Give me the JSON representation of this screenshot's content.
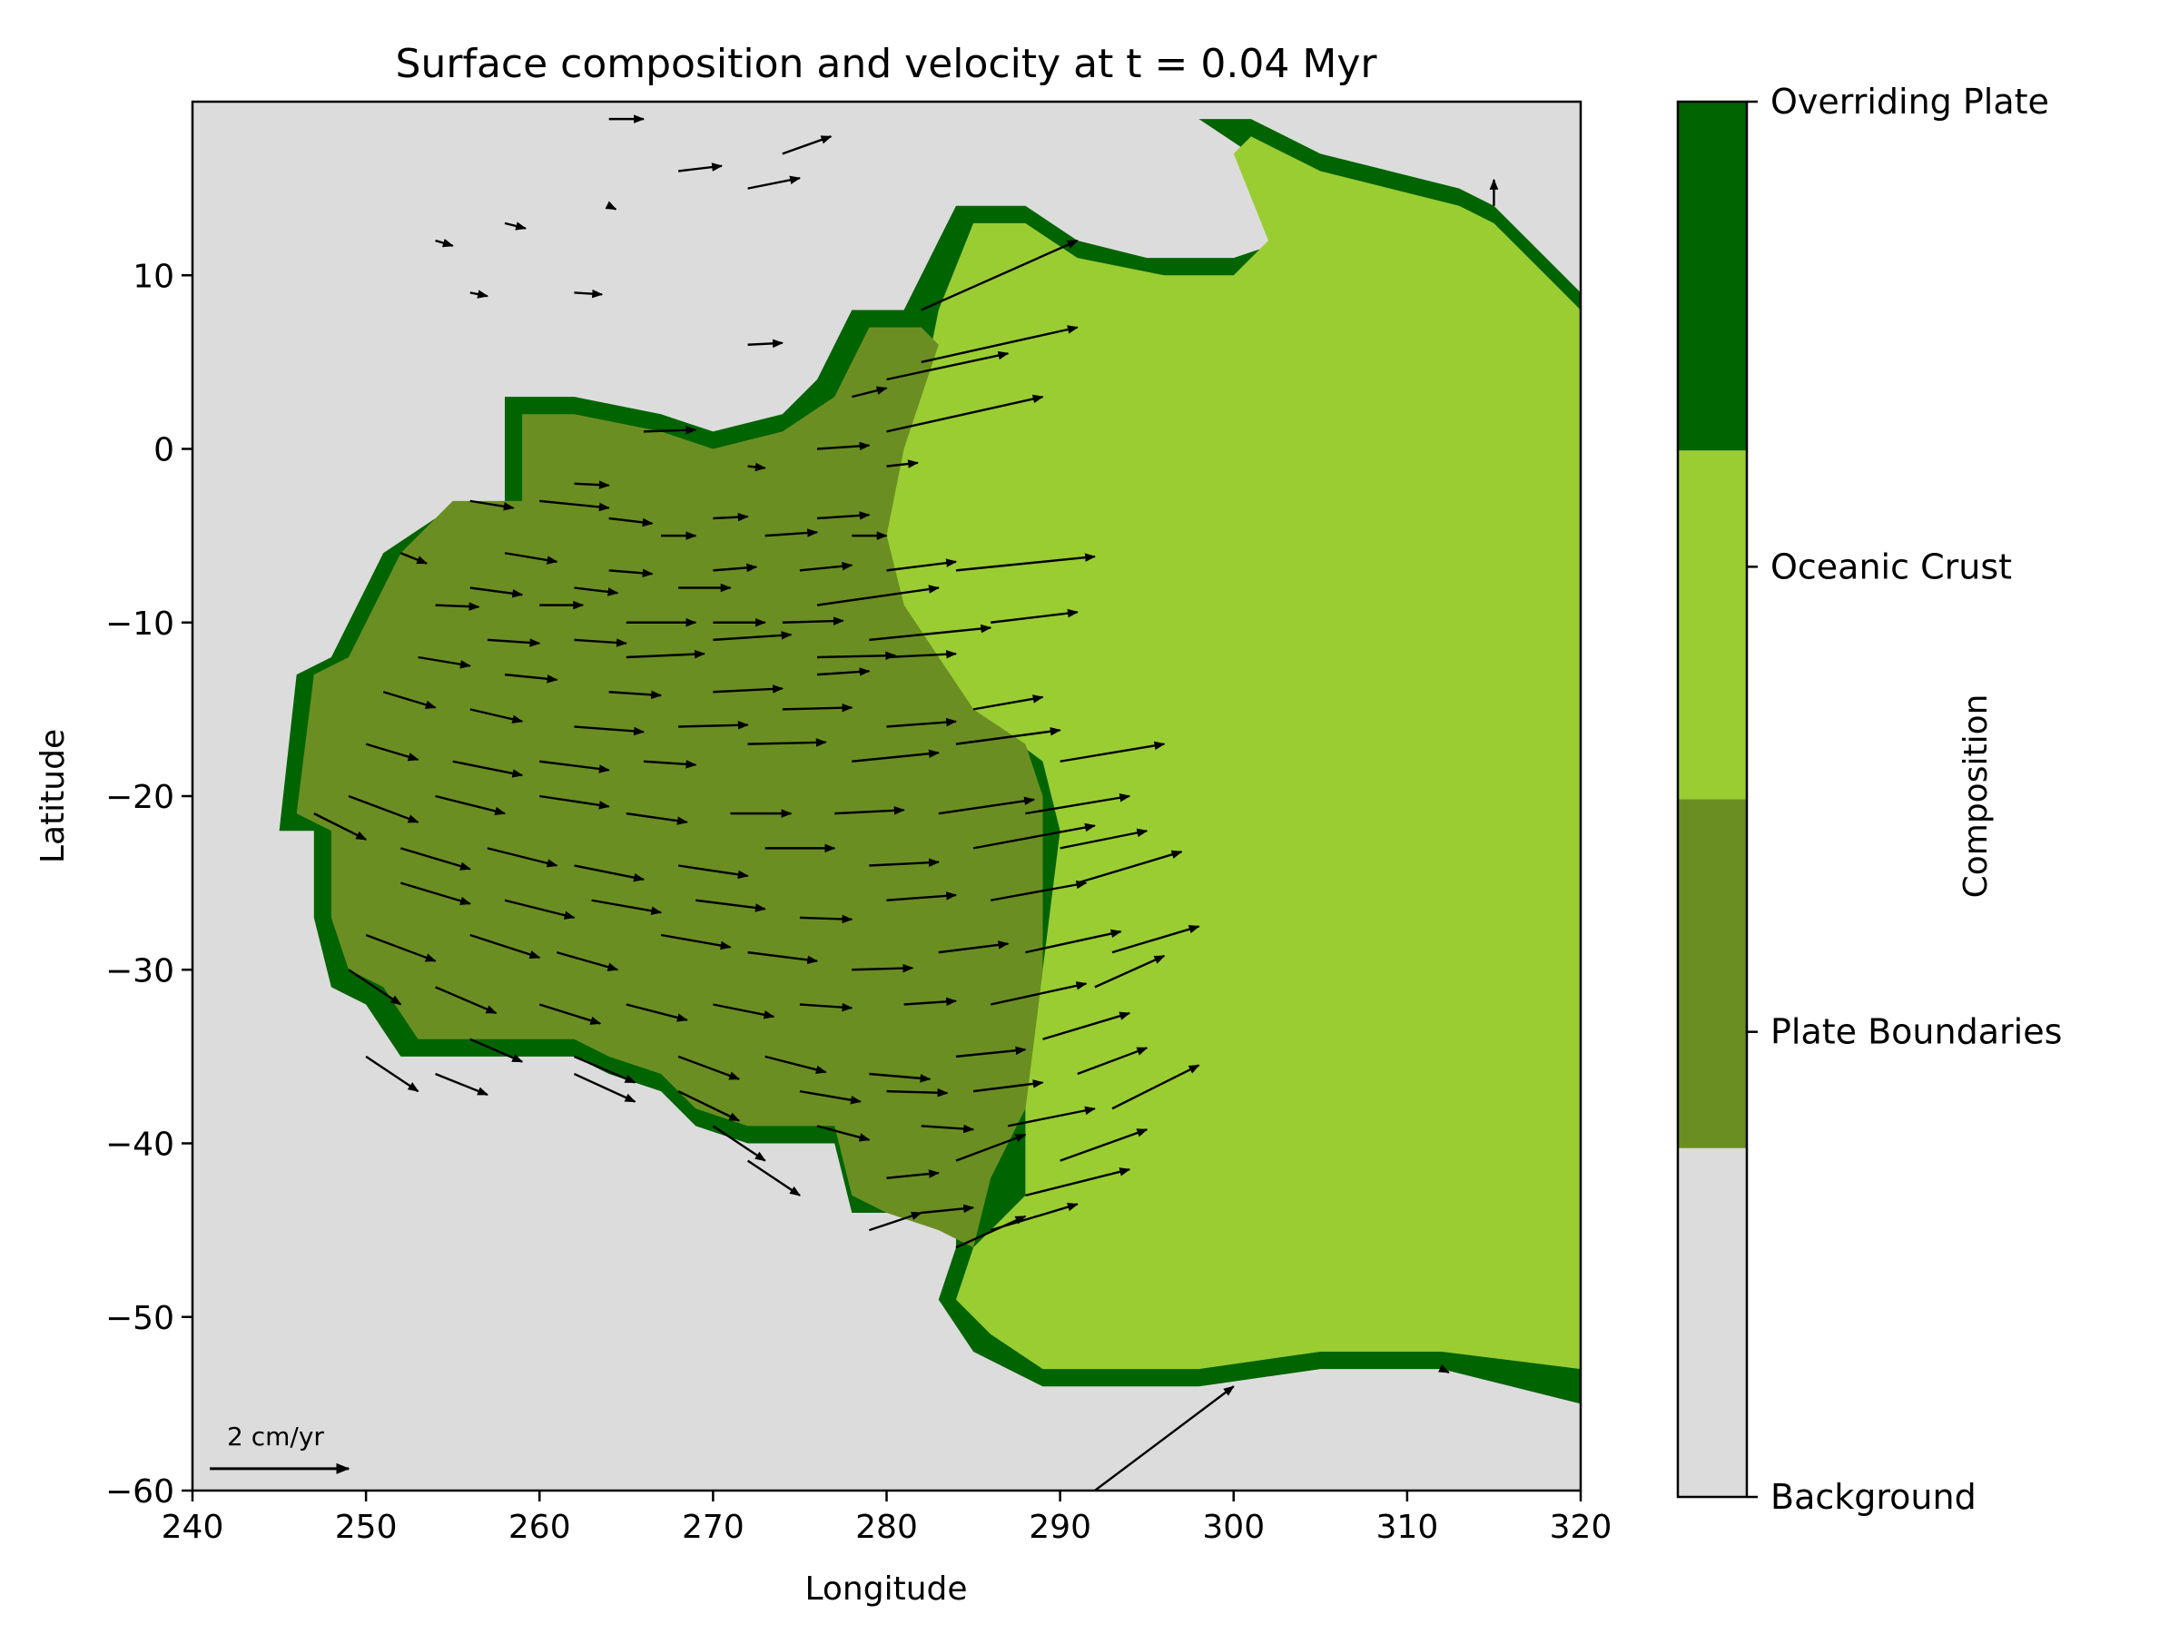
{
  "chart_data": {
    "type": "map",
    "title": "Surface composition and velocity at t = 0.04 Myr",
    "xlabel": "Longitude",
    "ylabel": "Latitude",
    "xlim": [
      240,
      320
    ],
    "ylim": [
      -60,
      20
    ],
    "xticks": [
      240,
      250,
      260,
      270,
      280,
      290,
      300,
      310,
      320
    ],
    "yticks": [
      -60,
      -50,
      -40,
      -30,
      -20,
      -10,
      0,
      10
    ],
    "colorbar": {
      "label": "Composition",
      "categories": [
        "Background",
        "Plate Boundaries",
        "Oceanic Crust",
        "Overriding Plate"
      ],
      "colors": [
        "#dcdcdc",
        "#6b8e23",
        "#9acd32",
        "#006400"
      ]
    },
    "regions": {
      "overriding_plate_outline": [
        [
          284,
          14
        ],
        [
          288,
          14
        ],
        [
          291,
          12
        ],
        [
          295,
          11
        ],
        [
          300,
          11
        ],
        [
          303,
          12
        ],
        [
          301,
          17
        ],
        [
          298,
          19
        ],
        [
          301,
          19
        ],
        [
          305,
          17
        ],
        [
          309,
          16
        ],
        [
          313,
          15
        ],
        [
          315,
          14
        ],
        [
          318,
          11
        ],
        [
          320,
          9
        ],
        [
          320,
          -55
        ],
        [
          312,
          -53
        ],
        [
          305,
          -53
        ],
        [
          298,
          -54
        ],
        [
          289,
          -54
        ],
        [
          285,
          -52
        ],
        [
          283,
          -49
        ],
        [
          284,
          -46
        ],
        [
          284,
          -44
        ],
        [
          281,
          -44
        ],
        [
          278,
          -44
        ],
        [
          277,
          -40
        ],
        [
          272,
          -40
        ],
        [
          269,
          -39
        ],
        [
          267,
          -37
        ],
        [
          264,
          -36
        ],
        [
          262,
          -35
        ],
        [
          257,
          -35
        ],
        [
          252,
          -35
        ],
        [
          250,
          -32
        ],
        [
          248,
          -31
        ],
        [
          247,
          -27
        ],
        [
          247,
          -22
        ],
        [
          245,
          -22
        ],
        [
          246,
          -13
        ],
        [
          248,
          -12
        ],
        [
          251,
          -6
        ],
        [
          254,
          -4
        ],
        [
          258,
          -4
        ],
        [
          258,
          3
        ],
        [
          262,
          3
        ],
        [
          267,
          2
        ],
        [
          270,
          1
        ],
        [
          274,
          2
        ],
        [
          276,
          4
        ],
        [
          278,
          8
        ],
        [
          281,
          8
        ],
        [
          282,
          10
        ],
        [
          283,
          12
        ]
      ],
      "oceanic_crust_outline": [
        [
          285,
          13
        ],
        [
          288,
          13
        ],
        [
          291,
          11
        ],
        [
          296,
          10
        ],
        [
          300,
          10
        ],
        [
          302,
          12
        ],
        [
          300,
          17
        ],
        [
          301,
          18
        ],
        [
          305,
          16
        ],
        [
          309,
          15
        ],
        [
          313,
          14
        ],
        [
          315,
          13
        ],
        [
          318,
          10
        ],
        [
          320,
          8
        ],
        [
          320,
          -53
        ],
        [
          312,
          -52
        ],
        [
          305,
          -52
        ],
        [
          298,
          -53
        ],
        [
          289,
          -53
        ],
        [
          286,
          -51
        ],
        [
          284,
          -49
        ],
        [
          285,
          -46
        ],
        [
          288,
          -43
        ],
        [
          288,
          -38
        ],
        [
          289,
          -30
        ],
        [
          290,
          -22
        ],
        [
          289,
          -18
        ],
        [
          285,
          -15
        ],
        [
          283,
          -12
        ],
        [
          281,
          -9
        ],
        [
          280,
          -5
        ],
        [
          280,
          -1
        ],
        [
          282,
          3
        ],
        [
          283,
          8
        ]
      ],
      "plate_boundaries_outline": [
        [
          259,
          2
        ],
        [
          262,
          2
        ],
        [
          267,
          1
        ],
        [
          270,
          0
        ],
        [
          274,
          1
        ],
        [
          277,
          3
        ],
        [
          279,
          7
        ],
        [
          282,
          7
        ],
        [
          283,
          6
        ],
        [
          282,
          3
        ],
        [
          281,
          0
        ],
        [
          280,
          -5
        ],
        [
          281,
          -9
        ],
        [
          283,
          -12
        ],
        [
          285,
          -15
        ],
        [
          288,
          -17
        ],
        [
          289,
          -20
        ],
        [
          289,
          -25
        ],
        [
          289,
          -30
        ],
        [
          288,
          -38
        ],
        [
          286,
          -42
        ],
        [
          285,
          -46
        ],
        [
          283,
          -45
        ],
        [
          280,
          -44
        ],
        [
          278,
          -43
        ],
        [
          277,
          -39
        ],
        [
          272,
          -39
        ],
        [
          269,
          -38
        ],
        [
          267,
          -36
        ],
        [
          264,
          -35
        ],
        [
          262,
          -34
        ],
        [
          257,
          -34
        ],
        [
          253,
          -34
        ],
        [
          251,
          -31
        ],
        [
          249,
          -30
        ],
        [
          248,
          -27
        ],
        [
          248,
          -22
        ],
        [
          246,
          -21
        ],
        [
          247,
          -13
        ],
        [
          249,
          -12
        ],
        [
          252,
          -6
        ],
        [
          255,
          -3
        ],
        [
          259,
          -3
        ]
      ]
    },
    "velocity_field": {
      "units": "cm/yr",
      "reference_arrow": {
        "label": "2 cm/yr",
        "magnitude": 2,
        "x": 241,
        "y": -59
      },
      "vectors": [
        [
          264,
          19,
          2.0,
          0.0
        ],
        [
          268,
          16,
          2.5,
          0.3
        ],
        [
          274,
          17,
          2.8,
          1.0
        ],
        [
          272,
          15,
          3.0,
          0.6
        ],
        [
          264,
          14,
          0.4,
          -0.2
        ],
        [
          258,
          13,
          1.2,
          -0.3
        ],
        [
          254,
          12,
          1.0,
          -0.3
        ],
        [
          256,
          9,
          1.0,
          -0.2
        ],
        [
          262,
          9,
          1.6,
          -0.1
        ],
        [
          272,
          6,
          2.0,
          0.1
        ],
        [
          282,
          8,
          9.0,
          4.0
        ],
        [
          282,
          5,
          9.0,
          2.0
        ],
        [
          280,
          4,
          7.0,
          1.5
        ],
        [
          278,
          3,
          2.0,
          0.5
        ],
        [
          280,
          1,
          9.0,
          2.0
        ],
        [
          276,
          0,
          3.0,
          0.2
        ],
        [
          266,
          1,
          3.0,
          0.1
        ],
        [
          272,
          -1,
          1.0,
          -0.1
        ],
        [
          280,
          -1,
          1.8,
          0.2
        ],
        [
          262,
          -2,
          2.0,
          -0.1
        ],
        [
          256,
          -3,
          2.5,
          -0.4
        ],
        [
          260,
          -3,
          4.0,
          -0.4
        ],
        [
          264,
          -4,
          2.5,
          -0.3
        ],
        [
          267,
          -5,
          2.0,
          0.0
        ],
        [
          270,
          -4,
          2.0,
          0.1
        ],
        [
          273,
          -5,
          3.0,
          0.2
        ],
        [
          276,
          -4,
          3.0,
          0.2
        ],
        [
          278,
          -5,
          2.0,
          0.0
        ],
        [
          258,
          -6,
          3.0,
          -0.5
        ],
        [
          264,
          -7,
          2.5,
          -0.2
        ],
        [
          270,
          -7,
          2.5,
          0.2
        ],
        [
          275,
          -7,
          3.0,
          0.3
        ],
        [
          280,
          -7,
          4.0,
          0.5
        ],
        [
          284,
          -7,
          8.0,
          0.8
        ],
        [
          252,
          -6,
          1.5,
          -0.6
        ],
        [
          256,
          -8,
          3.0,
          -0.4
        ],
        [
          262,
          -8,
          2.5,
          -0.3
        ],
        [
          268,
          -8,
          3.0,
          0.0
        ],
        [
          276,
          -9,
          7.0,
          1.0
        ],
        [
          254,
          -9,
          2.5,
          -0.1
        ],
        [
          260,
          -9,
          2.5,
          0.0
        ],
        [
          265,
          -10,
          4.0,
          0.0
        ],
        [
          270,
          -10,
          3.0,
          0.0
        ],
        [
          274,
          -10,
          3.5,
          0.1
        ],
        [
          279,
          -11,
          7.0,
          0.7
        ],
        [
          286,
          -10,
          5.0,
          0.6
        ],
        [
          257,
          -11,
          3.0,
          -0.2
        ],
        [
          262,
          -11,
          3.0,
          -0.2
        ],
        [
          265,
          -12,
          4.5,
          0.2
        ],
        [
          270,
          -11,
          4.5,
          0.3
        ],
        [
          276,
          -12,
          4.5,
          0.1
        ],
        [
          280,
          -12,
          4.0,
          0.2
        ],
        [
          253,
          -12,
          3.0,
          -0.5
        ],
        [
          258,
          -13,
          3.0,
          -0.3
        ],
        [
          264,
          -14,
          3.0,
          -0.2
        ],
        [
          270,
          -14,
          4.0,
          0.2
        ],
        [
          276,
          -13,
          3.0,
          0.2
        ],
        [
          251,
          -14,
          3.0,
          -0.9
        ],
        [
          256,
          -15,
          3.0,
          -0.7
        ],
        [
          262,
          -16,
          4.0,
          -0.3
        ],
        [
          268,
          -16,
          4.0,
          0.1
        ],
        [
          274,
          -15,
          4.0,
          0.1
        ],
        [
          280,
          -16,
          4.0,
          0.3
        ],
        [
          285,
          -15,
          4.0,
          0.7
        ],
        [
          250,
          -17,
          3.0,
          -0.9
        ],
        [
          255,
          -18,
          4.0,
          -0.8
        ],
        [
          260,
          -18,
          4.0,
          -0.5
        ],
        [
          266,
          -18,
          3.0,
          -0.2
        ],
        [
          272,
          -17,
          4.5,
          0.1
        ],
        [
          278,
          -18,
          5.0,
          0.5
        ],
        [
          284,
          -17,
          6.0,
          0.8
        ],
        [
          290,
          -18,
          6.0,
          1.0
        ],
        [
          249,
          -20,
          4.0,
          -1.5
        ],
        [
          254,
          -20,
          4.0,
          -1.0
        ],
        [
          260,
          -20,
          4.0,
          -0.6
        ],
        [
          265,
          -21,
          3.5,
          -0.5
        ],
        [
          271,
          -21,
          3.5,
          0.0
        ],
        [
          277,
          -21,
          4.0,
          0.2
        ],
        [
          283,
          -21,
          5.5,
          0.8
        ],
        [
          288,
          -21,
          6.0,
          1.0
        ],
        [
          247,
          -21,
          3.0,
          -1.5
        ],
        [
          252,
          -23,
          4.0,
          -1.2
        ],
        [
          257,
          -23,
          4.0,
          -1.0
        ],
        [
          262,
          -24,
          4.0,
          -0.8
        ],
        [
          268,
          -24,
          4.0,
          -0.6
        ],
        [
          273,
          -23,
          4.0,
          0.0
        ],
        [
          279,
          -24,
          4.0,
          0.2
        ],
        [
          285,
          -23,
          7.0,
          1.3
        ],
        [
          290,
          -23,
          5.0,
          1.0
        ],
        [
          252,
          -25,
          4.0,
          -1.2
        ],
        [
          258,
          -26,
          4.0,
          -1.0
        ],
        [
          263,
          -26,
          4.0,
          -0.7
        ],
        [
          269,
          -26,
          4.0,
          -0.5
        ],
        [
          275,
          -27,
          3.0,
          -0.1
        ],
        [
          280,
          -26,
          4.0,
          0.3
        ],
        [
          286,
          -26,
          5.5,
          1.0
        ],
        [
          291,
          -25,
          6.0,
          1.8
        ],
        [
          250,
          -28,
          4.0,
          -1.5
        ],
        [
          256,
          -28,
          4.0,
          -1.3
        ],
        [
          261,
          -29,
          3.5,
          -1.0
        ],
        [
          267,
          -28,
          4.0,
          -0.7
        ],
        [
          272,
          -29,
          4.0,
          -0.5
        ],
        [
          278,
          -30,
          3.5,
          0.1
        ],
        [
          283,
          -29,
          4.0,
          0.5
        ],
        [
          288,
          -29,
          5.5,
          1.2
        ],
        [
          293,
          -29,
          5.0,
          1.5
        ],
        [
          249,
          -30,
          3.0,
          -2.0
        ],
        [
          254,
          -31,
          3.5,
          -1.5
        ],
        [
          260,
          -32,
          3.5,
          -1.1
        ],
        [
          265,
          -32,
          3.5,
          -0.9
        ],
        [
          270,
          -32,
          3.5,
          -0.7
        ],
        [
          275,
          -32,
          3.0,
          -0.2
        ],
        [
          281,
          -32,
          3.0,
          0.2
        ],
        [
          286,
          -32,
          5.5,
          1.2
        ],
        [
          292,
          -31,
          4.0,
          1.8
        ],
        [
          250,
          -35,
          3.0,
          -2.0
        ],
        [
          256,
          -34,
          3.0,
          -1.3
        ],
        [
          262,
          -35,
          3.5,
          -1.5
        ],
        [
          268,
          -35,
          3.5,
          -1.3
        ],
        [
          273,
          -35,
          3.5,
          -0.9
        ],
        [
          279,
          -36,
          3.5,
          -0.3
        ],
        [
          284,
          -35,
          4.0,
          0.4
        ],
        [
          289,
          -34,
          5.0,
          1.5
        ],
        [
          254,
          -36,
          3.0,
          -1.2
        ],
        [
          262,
          -36,
          3.5,
          -1.6
        ],
        [
          268,
          -37,
          3.5,
          -1.7
        ],
        [
          275,
          -37,
          3.5,
          -0.6
        ],
        [
          280,
          -37,
          3.5,
          -0.1
        ],
        [
          285,
          -37,
          4.0,
          0.5
        ],
        [
          291,
          -36,
          4.0,
          1.5
        ],
        [
          270,
          -39,
          3.0,
          -2.0
        ],
        [
          276,
          -39,
          3.0,
          -0.8
        ],
        [
          282,
          -39,
          3.0,
          -0.2
        ],
        [
          287,
          -39,
          5.0,
          1.0
        ],
        [
          293,
          -38,
          5.0,
          2.5
        ],
        [
          272,
          -41,
          3.0,
          -2.0
        ],
        [
          280,
          -42,
          3.0,
          0.3
        ],
        [
          284,
          -41,
          4.0,
          1.5
        ],
        [
          290,
          -41,
          5.0,
          1.8
        ],
        [
          288,
          -43,
          6.0,
          1.5
        ],
        [
          282,
          -44,
          3.0,
          0.3
        ],
        [
          286,
          -45,
          5.0,
          1.5
        ],
        [
          279,
          -45,
          3.0,
          1.0
        ],
        [
          284,
          -46,
          4.0,
          1.8
        ],
        [
          292,
          -60,
          8.0,
          6.0
        ],
        [
          315,
          14,
          0.0,
          1.5
        ],
        [
          312,
          -53,
          0.4,
          -0.2
        ]
      ]
    }
  }
}
